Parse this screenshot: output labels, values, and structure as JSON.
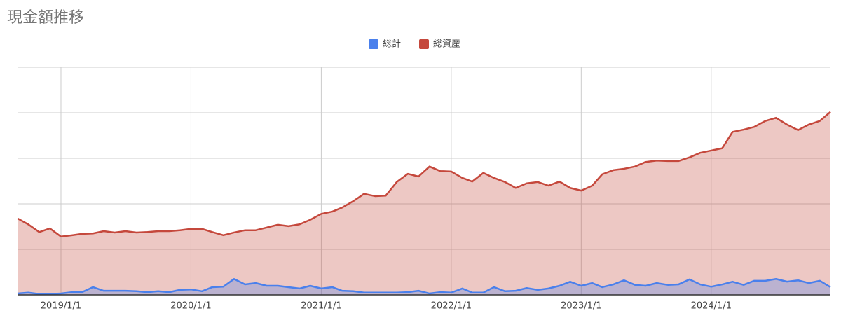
{
  "chart_data": {
    "type": "area",
    "title": "現金額推移",
    "x": [
      "2018/9/1",
      "2018/10/1",
      "2018/11/1",
      "2018/12/1",
      "2019/1/1",
      "2019/2/1",
      "2019/3/1",
      "2019/4/1",
      "2019/5/1",
      "2019/6/1",
      "2019/7/1",
      "2019/8/1",
      "2019/9/1",
      "2019/10/1",
      "2019/11/1",
      "2019/12/1",
      "2020/1/1",
      "2020/2/1",
      "2020/3/1",
      "2020/4/1",
      "2020/5/1",
      "2020/6/1",
      "2020/7/1",
      "2020/8/1",
      "2020/9/1",
      "2020/10/1",
      "2020/11/1",
      "2020/12/1",
      "2021/1/1",
      "2021/2/1",
      "2021/3/1",
      "2021/4/1",
      "2021/5/1",
      "2021/6/1",
      "2021/7/1",
      "2021/8/1",
      "2021/9/1",
      "2021/10/1",
      "2021/11/1",
      "2021/12/1",
      "2022/1/1",
      "2022/2/1",
      "2022/3/1",
      "2022/4/1",
      "2022/5/1",
      "2022/6/1",
      "2022/7/1",
      "2022/8/1",
      "2022/9/1",
      "2022/10/1",
      "2022/11/1",
      "2022/12/1",
      "2023/1/1",
      "2023/2/1",
      "2023/3/1",
      "2023/4/1",
      "2023/5/1",
      "2023/6/1",
      "2023/7/1",
      "2023/8/1",
      "2023/9/1",
      "2023/10/1",
      "2023/11/1",
      "2023/12/1",
      "2024/1/1",
      "2024/2/1",
      "2024/3/1",
      "2024/4/1",
      "2024/5/1",
      "2024/6/1",
      "2024/7/1",
      "2024/8/1",
      "2024/9/1",
      "2024/10/1",
      "2024/11/1",
      "2024/12/1"
    ],
    "series": [
      {
        "name": "総計",
        "color": "#4a80ec",
        "values": [
          0.03,
          0.05,
          0.02,
          0.02,
          0.03,
          0.06,
          0.06,
          0.17,
          0.09,
          0.09,
          0.09,
          0.08,
          0.06,
          0.08,
          0.06,
          0.11,
          0.12,
          0.08,
          0.17,
          0.18,
          0.35,
          0.23,
          0.26,
          0.2,
          0.2,
          0.17,
          0.14,
          0.2,
          0.14,
          0.17,
          0.09,
          0.08,
          0.05,
          0.05,
          0.05,
          0.05,
          0.06,
          0.09,
          0.03,
          0.06,
          0.05,
          0.14,
          0.05,
          0.05,
          0.17,
          0.08,
          0.09,
          0.15,
          0.11,
          0.14,
          0.2,
          0.29,
          0.2,
          0.26,
          0.17,
          0.23,
          0.32,
          0.22,
          0.2,
          0.26,
          0.22,
          0.23,
          0.34,
          0.23,
          0.18,
          0.23,
          0.29,
          0.22,
          0.31,
          0.31,
          0.35,
          0.29,
          0.32,
          0.26,
          0.31,
          0.17
        ]
      },
      {
        "name": "総資産",
        "color": "#c5483c",
        "values": [
          1.68,
          1.55,
          1.38,
          1.46,
          1.28,
          1.31,
          1.34,
          1.35,
          1.4,
          1.37,
          1.4,
          1.37,
          1.38,
          1.4,
          1.4,
          1.42,
          1.45,
          1.45,
          1.38,
          1.31,
          1.37,
          1.42,
          1.42,
          1.48,
          1.54,
          1.51,
          1.55,
          1.65,
          1.78,
          1.83,
          1.92,
          2.06,
          2.22,
          2.17,
          2.18,
          2.48,
          2.66,
          2.6,
          2.82,
          2.72,
          2.71,
          2.57,
          2.49,
          2.68,
          2.57,
          2.48,
          2.35,
          2.45,
          2.48,
          2.4,
          2.49,
          2.35,
          2.29,
          2.4,
          2.65,
          2.74,
          2.77,
          2.82,
          2.92,
          2.95,
          2.94,
          2.94,
          3.02,
          3.12,
          3.17,
          3.22,
          3.58,
          3.63,
          3.69,
          3.82,
          3.89,
          3.74,
          3.62,
          3.74,
          3.82,
          4.02
        ]
      }
    ],
    "xlim": [
      "2018/9/1",
      "2024/12/1"
    ],
    "xticks": [
      "2019/1/1",
      "2020/1/1",
      "2021/1/1",
      "2022/1/1",
      "2023/1/1",
      "2024/1/1"
    ],
    "ylim": [
      0,
      5
    ],
    "yticks": [
      0,
      1,
      2,
      3,
      4,
      5
    ],
    "y_tick_labels": false,
    "grid": true,
    "legend": "top"
  }
}
